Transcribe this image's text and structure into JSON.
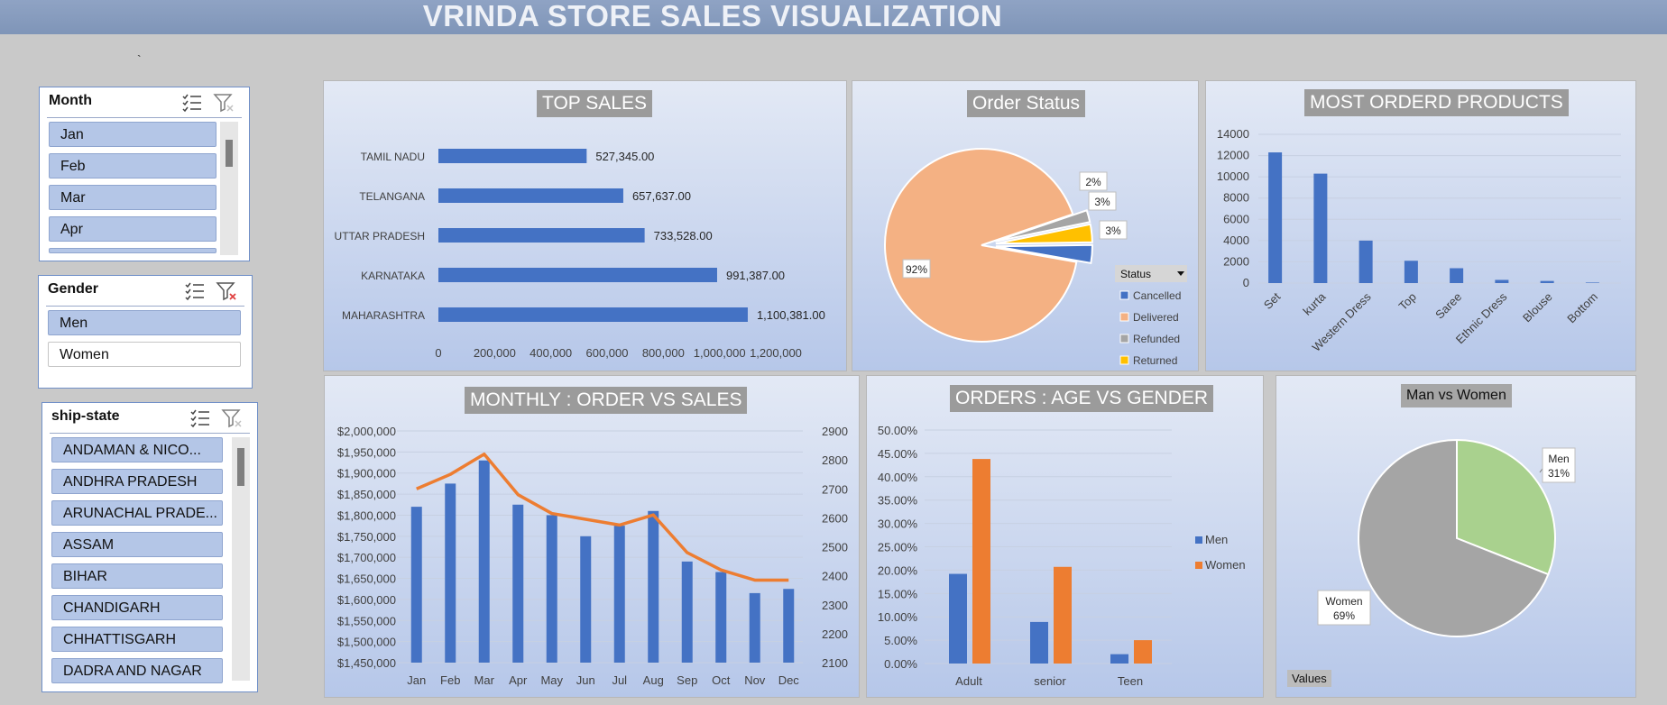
{
  "title": "VRINDA STORE SALES VISUALIZATION",
  "stray_mark": "`",
  "colors": {
    "blue": "#4472c4",
    "orange": "#ed7d31",
    "peach": "#f4b183",
    "grey": "#a5a5a5",
    "yellow": "#ffc000",
    "green": "#a9d18e"
  },
  "slicers": {
    "month": {
      "header": "Month",
      "items": [
        "Jan",
        "Feb",
        "Mar",
        "Apr"
      ]
    },
    "gender": {
      "header": "Gender",
      "items": [
        "Men",
        "Women"
      ]
    },
    "state": {
      "header": "ship-state",
      "items": [
        "ANDAMAN & NICO...",
        "ANDHRA PRADESH",
        "ARUNACHAL PRADE...",
        "ASSAM",
        "BIHAR",
        "CHANDIGARH",
        "CHHATTISGARH",
        "DADRA AND NAGAR"
      ]
    }
  },
  "icons": {
    "multi_select": "multi-select-icon",
    "clear_filter": "clear-filter-icon"
  },
  "chart_data": [
    {
      "id": "top_sales",
      "type": "bar",
      "orientation": "horizontal",
      "title": "TOP SALES",
      "categories": [
        "TAMIL NADU",
        "TELANGANA",
        "UTTAR PRADESH",
        "KARNATAKA",
        "MAHARASHTRA"
      ],
      "values": [
        527345,
        657637,
        733528,
        991387,
        1100381
      ],
      "data_labels": [
        "527,345.00",
        "657,637.00",
        "733,528.00",
        "991,387.00",
        "1,100,381.00"
      ],
      "xticks": [
        "0",
        "200,000",
        "400,000",
        "600,000",
        "800,000",
        "1,000,000",
        "1,200,000"
      ],
      "xlim": [
        0,
        1200000
      ]
    },
    {
      "id": "order_status",
      "type": "pie",
      "title": "Order Status",
      "slices": [
        {
          "name": "Cancelled",
          "value": 3
        },
        {
          "name": "Delivered",
          "value": 92
        },
        {
          "name": "Refunded",
          "value": 2
        },
        {
          "name": "Returned",
          "value": 3
        }
      ],
      "data_labels": [
        "3%",
        "92%",
        "2%",
        "3%"
      ],
      "legend_title": "Status",
      "legend_placement": "bottom-right"
    },
    {
      "id": "most_ordered",
      "type": "bar",
      "title": "MOST ORDERD PRODUCTS",
      "categories": [
        "Set",
        "kurta",
        "Western Dress",
        "Top",
        "Saree",
        "Ethnic Dress",
        "Blouse",
        "Bottom"
      ],
      "values": [
        12300,
        10300,
        4000,
        2100,
        1400,
        300,
        200,
        50
      ],
      "yticks": [
        "0",
        "2000",
        "4000",
        "6000",
        "8000",
        "10000",
        "12000",
        "14000"
      ],
      "ylim": [
        0,
        14000
      ],
      "grid": true
    },
    {
      "id": "monthly",
      "type": "bar",
      "title": "MONTHLY : ORDER VS SALES",
      "categories": [
        "Jan",
        "Feb",
        "Mar",
        "Apr",
        "May",
        "Jun",
        "Jul",
        "Aug",
        "Sep",
        "Oct",
        "Nov",
        "Dec"
      ],
      "series": [
        {
          "values": [
            1820000,
            1875000,
            1930000,
            1825000,
            1800000,
            1750000,
            1775000,
            1810000,
            1690000,
            1665000,
            1615000,
            1625000
          ]
        },
        {
          "values": [
            2700,
            2750,
            2820,
            2680,
            2615,
            2595,
            2575,
            2610,
            2480,
            2420,
            2385,
            2385
          ]
        }
      ],
      "yticks_left": [
        "$1,450,000",
        "$1,500,000",
        "$1,550,000",
        "$1,600,000",
        "$1,650,000",
        "$1,700,000",
        "$1,750,000",
        "$1,800,000",
        "$1,850,000",
        "$1,900,000",
        "$1,950,000",
        "$2,000,000"
      ],
      "yticks_right": [
        "2100",
        "2200",
        "2300",
        "2400",
        "2500",
        "2600",
        "2700",
        "2800",
        "2900"
      ],
      "ylim_left": [
        1450000,
        2000000
      ],
      "ylim_right": [
        2100,
        2900
      ]
    },
    {
      "id": "age_gender",
      "type": "bar",
      "title": "ORDERS : AGE VS GENDER",
      "categories": [
        "Adult",
        "senior",
        "Teen"
      ],
      "series": [
        {
          "name": "Men",
          "values": [
            19.2,
            8.9,
            2.0
          ]
        },
        {
          "name": "Women",
          "values": [
            43.8,
            20.7,
            5.0
          ]
        }
      ],
      "yticks": [
        "0.00%",
        "5.00%",
        "10.00%",
        "15.00%",
        "20.00%",
        "25.00%",
        "30.00%",
        "35.00%",
        "40.00%",
        "45.00%",
        "50.00%"
      ],
      "ylim": [
        0,
        50
      ],
      "legend_placement": "right"
    },
    {
      "id": "man_vs_women",
      "type": "pie",
      "title": "Man vs Women",
      "slices": [
        {
          "name": "Men",
          "value": 31
        },
        {
          "name": "Women",
          "value": 69
        }
      ],
      "data_labels": [
        "Men",
        "31%",
        "Women",
        "69%"
      ],
      "field_button": "Values"
    }
  ]
}
